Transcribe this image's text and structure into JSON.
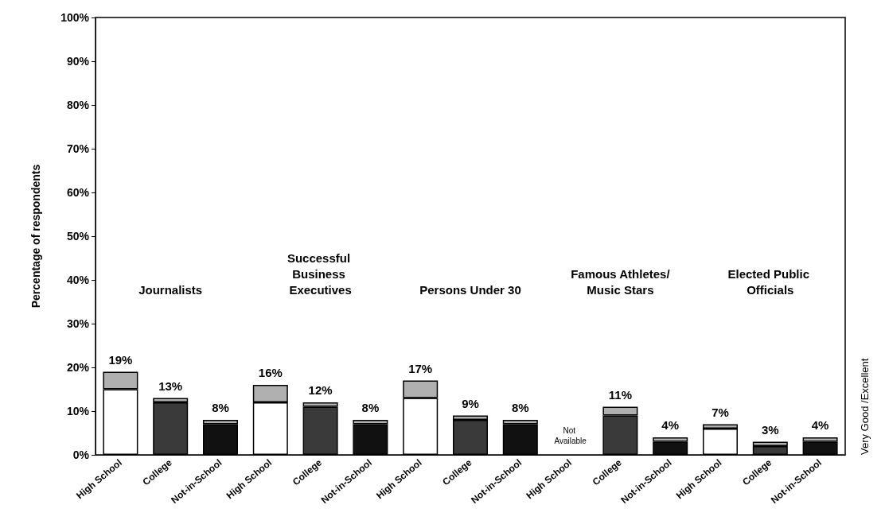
{
  "chart_data": {
    "type": "bar",
    "stacked": true,
    "categories": [
      "High School",
      "College",
      "Not-in-School",
      "High School",
      "College",
      "Not-in-School",
      "High School",
      "College",
      "Not-in-School",
      "High School",
      "College",
      "Not-in-School",
      "High School",
      "College",
      "Not-in-School"
    ],
    "series": [
      {
        "colors": [
          "#ffffff",
          "#3a3a3a",
          "#111111",
          "#ffffff",
          "#3a3a3a",
          "#111111",
          "#ffffff",
          "#3a3a3a",
          "#111111",
          "#ffffff",
          "#3a3a3a",
          "#111111",
          "#ffffff",
          "#3a3a3a",
          "#111111"
        ],
        "values": [
          15,
          12,
          7,
          12,
          11,
          7,
          13,
          8,
          7,
          null,
          9,
          3,
          6,
          2,
          3
        ]
      },
      {
        "color": "#b0b0b0",
        "values": [
          4,
          1,
          1,
          4,
          1,
          1,
          4,
          1,
          1,
          null,
          2,
          1,
          1,
          1,
          1
        ]
      }
    ],
    "totals": [
      "19%",
      "13%",
      "8%",
      "16%",
      "12%",
      "8%",
      "17%",
      "9%",
      "8%",
      null,
      "11%",
      "4%",
      "7%",
      "3%",
      "4%"
    ],
    "ylabel": "Percentage of respondents",
    "ylim": [
      0,
      100
    ],
    "yticks": [
      {
        "value": 0,
        "label": "0%"
      },
      {
        "value": 10,
        "label": "10%"
      },
      {
        "value": 20,
        "label": "20%"
      },
      {
        "value": 30,
        "label": "30%"
      },
      {
        "value": 40,
        "label": "40%"
      },
      {
        "value": 50,
        "label": "50%"
      },
      {
        "value": 60,
        "label": "60%"
      },
      {
        "value": 70,
        "label": "70%"
      },
      {
        "value": 80,
        "label": "80%"
      },
      {
        "value": 90,
        "label": "90%"
      },
      {
        "value": 100,
        "label": "100%"
      }
    ],
    "annotations": [
      "Journalists",
      "Successful Business Executives",
      "Persons Under 30",
      "Famous Athletes/Music Stars",
      "Elected Public Officials",
      "Not Available",
      "Very Good /Excellent"
    ],
    "grid": false
  }
}
